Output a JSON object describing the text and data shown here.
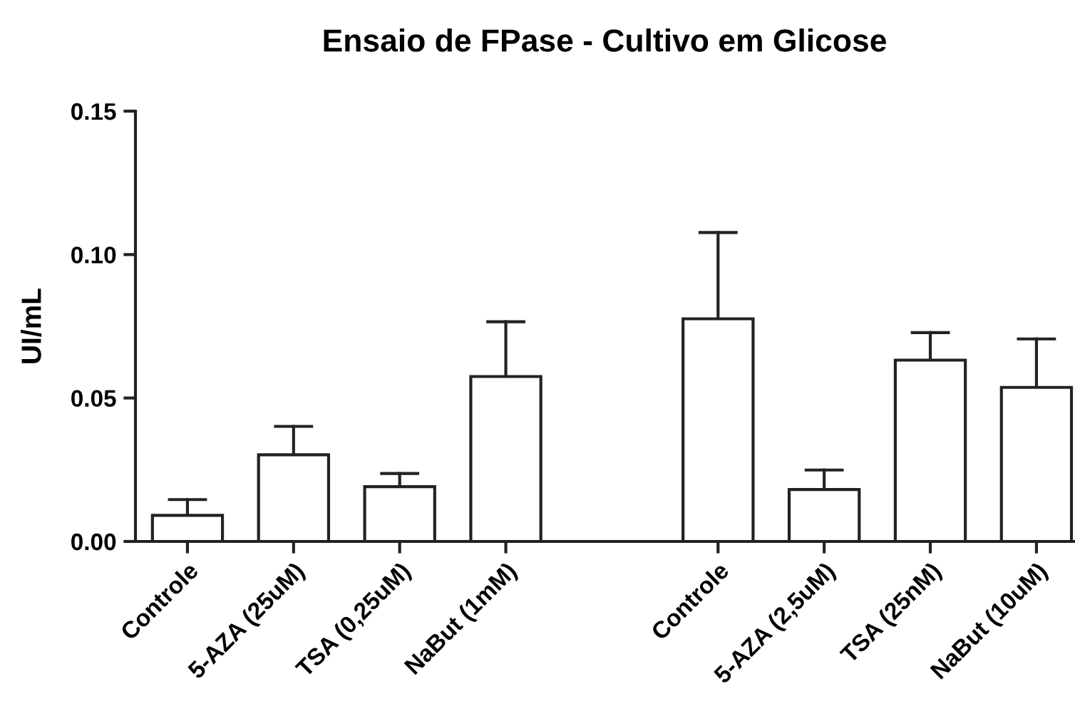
{
  "chart_data": {
    "type": "bar",
    "title": "Ensaio de FPase - Cultivo em Glicose",
    "ylabel": "UI/mL",
    "categories": [
      "Controle",
      "5-AZA (25uM)",
      "TSA (0,25uM)",
      "NaBut (1mM)",
      null,
      "Controle",
      "5-AZA (2,5uM)",
      "TSA (25nM)",
      "NaBut (10uM)"
    ],
    "values": [
      0.0091,
      0.0302,
      0.0191,
      0.0575,
      null,
      0.0776,
      0.0181,
      0.0632,
      0.0537
    ],
    "errors": [
      [
        0.0091,
        0.0146
      ],
      [
        0.0302,
        0.0401
      ],
      [
        0.0191,
        0.0237
      ],
      [
        0.0575,
        0.0766
      ],
      null,
      [
        0.0776,
        0.1077
      ],
      [
        0.0181,
        0.0249
      ],
      [
        0.0632,
        0.0728
      ],
      [
        0.0537,
        0.0706
      ]
    ],
    "colors": [
      "#ffffff",
      "#ffffff",
      "#ffffff",
      "#ffffff",
      "#ffffff",
      "#ffffff",
      "#ffffff",
      "#ffffff",
      "#ffffff"
    ],
    "ylim": [
      0,
      0.15
    ],
    "yticks": [
      {
        "value": 0,
        "label": "0.00"
      },
      {
        "value": 0.05,
        "label": "0.05"
      },
      {
        "value": 0.1,
        "label": "0.10"
      },
      {
        "value": 0.15,
        "label": "0.15"
      }
    ],
    "grid": false,
    "legend": false
  }
}
